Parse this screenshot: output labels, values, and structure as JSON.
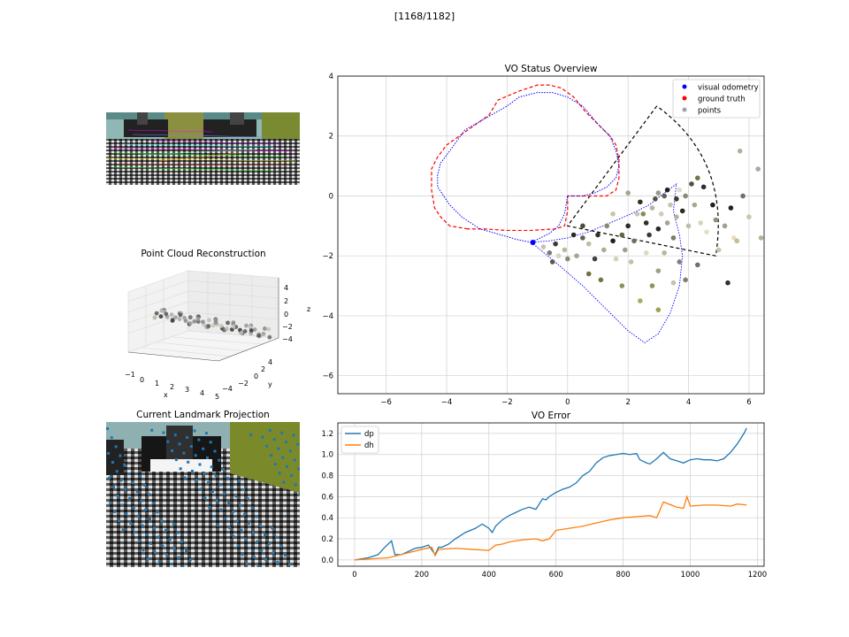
{
  "frame_counter": "[1168/1182]",
  "panels": {
    "top_image": {
      "kind": "camera frame with feature tracks"
    },
    "point_cloud": {
      "title": "Point Cloud Reconstruction",
      "xlabel": "x",
      "ylabel": "y",
      "zlabel": "z"
    },
    "landmark": {
      "title": "Current Landmark Projection"
    }
  },
  "colors": {
    "visual_odometry": "#0000ff",
    "ground_truth": "#ff0000",
    "points": "#a0a0a0",
    "dp": "#1f77b4",
    "dh": "#ff7f0e",
    "fov": "#000000",
    "grid": "#cfcfcf"
  },
  "chart_data": [
    {
      "type": "scatter",
      "title": "VO Status Overview",
      "xlim": [
        -7.6,
        6.5
      ],
      "ylim": [
        -6.6,
        4.0
      ],
      "xticks": [
        -6,
        -4,
        -2,
        0,
        2,
        4,
        6
      ],
      "yticks": [
        -6,
        -4,
        -2,
        0,
        2,
        4
      ],
      "grid": true,
      "legend_position": "top-right",
      "legend": [
        {
          "label": "visual odometry",
          "color": "#0000ff"
        },
        {
          "label": "ground truth",
          "color": "#ff0000"
        },
        {
          "label": "points",
          "color": "#a0a0a0"
        }
      ],
      "ground_truth_path": [
        [
          -3.3,
          -1.1
        ],
        [
          -3.9,
          -1.0
        ],
        [
          -4.2,
          -0.7
        ],
        [
          -4.4,
          -0.4
        ],
        [
          -4.5,
          0.2
        ],
        [
          -4.5,
          0.9
        ],
        [
          -4.3,
          1.3
        ],
        [
          -4.0,
          1.7
        ],
        [
          -3.3,
          2.2
        ],
        [
          -2.6,
          2.7
        ],
        [
          -2.3,
          3.2
        ],
        [
          -1.6,
          3.5
        ],
        [
          -1.0,
          3.7
        ],
        [
          -0.6,
          3.7
        ],
        [
          -0.2,
          3.6
        ],
        [
          0.2,
          3.3
        ],
        [
          0.6,
          2.8
        ],
        [
          1.1,
          2.3
        ],
        [
          1.4,
          2.0
        ],
        [
          1.6,
          1.7
        ],
        [
          1.7,
          1.2
        ],
        [
          1.7,
          0.6
        ],
        [
          1.6,
          0.2
        ],
        [
          1.3,
          0.0
        ],
        [
          0.9,
          0.0
        ],
        [
          0.5,
          0.0
        ],
        [
          0.0,
          0.0
        ],
        [
          0.0,
          -0.5
        ],
        [
          -0.1,
          -1.0
        ],
        [
          -0.4,
          -1.1
        ],
        [
          -1.2,
          -1.15
        ],
        [
          -2.0,
          -1.15
        ],
        [
          -2.8,
          -1.1
        ],
        [
          -3.3,
          -1.1
        ]
      ],
      "visual_odometry_path": [
        [
          -1.2,
          -1.55
        ],
        [
          -1.7,
          -1.45
        ],
        [
          -2.2,
          -1.3
        ],
        [
          -2.9,
          -1.1
        ],
        [
          -3.5,
          -0.7
        ],
        [
          -3.9,
          -0.3
        ],
        [
          -4.1,
          0.0
        ],
        [
          -4.3,
          0.3
        ],
        [
          -4.3,
          0.7
        ],
        [
          -4.2,
          1.1
        ],
        [
          -3.9,
          1.5
        ],
        [
          -3.4,
          2.2
        ],
        [
          -2.7,
          2.6
        ],
        [
          -2.0,
          3.0
        ],
        [
          -1.6,
          3.3
        ],
        [
          -1.0,
          3.45
        ],
        [
          -0.5,
          3.45
        ],
        [
          0.0,
          3.3
        ],
        [
          0.5,
          3.0
        ],
        [
          1.0,
          2.4
        ],
        [
          1.4,
          2.0
        ],
        [
          1.6,
          1.5
        ],
        [
          1.7,
          1.0
        ],
        [
          1.6,
          0.6
        ],
        [
          1.3,
          0.3
        ],
        [
          0.9,
          0.1
        ],
        [
          0.5,
          0.0
        ],
        [
          0.0,
          0.0
        ],
        [
          -0.1,
          -0.6
        ],
        [
          -0.3,
          -1.0
        ],
        [
          -0.6,
          -1.25
        ],
        [
          -1.2,
          -1.55
        ]
      ],
      "vo_coverage_boundary": [
        [
          -1.2,
          -1.55
        ],
        [
          -0.3,
          -2.3
        ],
        [
          0.5,
          -3.0
        ],
        [
          1.3,
          -3.8
        ],
        [
          2.0,
          -4.5
        ],
        [
          2.55,
          -4.9
        ],
        [
          3.0,
          -4.6
        ],
        [
          3.4,
          -3.9
        ],
        [
          3.7,
          -3.0
        ],
        [
          3.8,
          -2.0
        ],
        [
          3.7,
          -1.3
        ],
        [
          3.6,
          -0.9
        ],
        [
          3.5,
          -0.5
        ],
        [
          3.6,
          0.4
        ],
        [
          3.2,
          0.1
        ],
        [
          2.7,
          -0.3
        ],
        [
          2.1,
          -0.6
        ],
        [
          1.4,
          -0.9
        ],
        [
          0.7,
          -1.2
        ],
        [
          0.0,
          -1.4
        ],
        [
          -0.6,
          -1.5
        ],
        [
          -1.2,
          -1.55
        ]
      ],
      "fov_cone": {
        "apex": [
          0.0,
          -1.0
        ],
        "left": [
          2.95,
          3.0
        ],
        "right": [
          4.9,
          -2.0
        ]
      },
      "current_position": [
        -1.15,
        -1.55
      ],
      "points": [
        [
          -0.8,
          -1.7,
          "#c8c2b0"
        ],
        [
          -0.6,
          -1.9,
          "#7a7a6a"
        ],
        [
          -0.4,
          -1.6,
          "#3a3a3a"
        ],
        [
          -0.3,
          -2.0,
          "#d8d4c8"
        ],
        [
          -0.1,
          -1.8,
          "#bdb79a"
        ],
        [
          -0.5,
          -2.2,
          "#5a5a50"
        ],
        [
          0.0,
          -2.1,
          "#8a8a7a"
        ],
        [
          0.2,
          -1.3,
          "#2a2a2a"
        ],
        [
          0.3,
          -2.0,
          "#a8a68a"
        ],
        [
          0.5,
          -1.4,
          "#606050"
        ],
        [
          0.7,
          -1.6,
          "#c0bba0"
        ],
        [
          0.9,
          -2.1,
          "#404040"
        ],
        [
          1.0,
          -1.3,
          "#303030"
        ],
        [
          1.2,
          -1.8,
          "#b0aa90"
        ],
        [
          1.3,
          -1.0,
          "#888878"
        ],
        [
          1.5,
          -1.5,
          "#202020"
        ],
        [
          1.6,
          -2.1,
          "#d8d0b8"
        ],
        [
          1.8,
          -1.3,
          "#5a6a3a"
        ],
        [
          1.9,
          -1.8,
          "#a0a090"
        ],
        [
          2.0,
          -1.0,
          "#2a2a2a"
        ],
        [
          2.1,
          -2.2,
          "#c8c0a8"
        ],
        [
          2.2,
          -1.5,
          "#707060"
        ],
        [
          2.3,
          -0.6,
          "#c8c4b0"
        ],
        [
          2.4,
          -0.2,
          "#303028"
        ],
        [
          2.5,
          -0.6,
          "#8a8a5a"
        ],
        [
          2.6,
          -1.9,
          "#e0d8c0"
        ],
        [
          2.7,
          -1.3,
          "#3a3a3a"
        ],
        [
          2.8,
          -0.4,
          "#b8b4a0"
        ],
        [
          2.9,
          -0.1,
          "#505048"
        ],
        [
          3.0,
          0.1,
          "#9a9a88"
        ],
        [
          3.0,
          -1.1,
          "#2a2a2a"
        ],
        [
          3.1,
          -0.6,
          "#d0ccb8"
        ],
        [
          3.2,
          0.0,
          "#606058"
        ],
        [
          3.3,
          -0.9,
          "#a8a490"
        ],
        [
          3.3,
          0.2,
          "#202020"
        ],
        [
          3.4,
          -0.3,
          "#c8c4b0"
        ],
        [
          3.5,
          -1.4,
          "#7a7a6a"
        ],
        [
          3.6,
          -0.1,
          "#3a3a32"
        ],
        [
          3.6,
          -0.7,
          "#b8b29a"
        ],
        [
          3.7,
          0.2,
          "#e0dcc8"
        ],
        [
          3.8,
          -0.5,
          "#2a2a2a"
        ],
        [
          3.9,
          0.0,
          "#8a8a78"
        ],
        [
          4.0,
          -1.0,
          "#c0bca8"
        ],
        [
          4.1,
          0.4,
          "#505048"
        ],
        [
          4.2,
          -0.3,
          "#aaa690"
        ],
        [
          4.3,
          0.6,
          "#6a7a40"
        ],
        [
          4.4,
          -0.9,
          "#d8d4c0"
        ],
        [
          4.5,
          0.3,
          "#303030"
        ],
        [
          4.6,
          -1.2,
          "#e4e0c8"
        ],
        [
          4.8,
          -0.3,
          "#202020"
        ],
        [
          5.0,
          -1.8,
          "#c8c4b0"
        ],
        [
          5.2,
          -1.0,
          "#a0a090"
        ],
        [
          5.4,
          -0.4,
          "#202020"
        ],
        [
          5.5,
          -1.4,
          "#e8dcc0"
        ],
        [
          5.7,
          1.5,
          "#b0b0a0"
        ],
        [
          5.8,
          0.0,
          "#707068"
        ],
        [
          6.0,
          -0.7,
          "#c8c4b0"
        ],
        [
          6.3,
          0.9,
          "#a8a8a0"
        ],
        [
          6.4,
          -1.4,
          "#b8b290"
        ],
        [
          3.0,
          -2.5,
          "#a0a080"
        ],
        [
          2.8,
          -3.0,
          "#909060"
        ],
        [
          3.5,
          -2.9,
          "#c8c0a8"
        ],
        [
          3.9,
          -2.8,
          "#808070"
        ],
        [
          5.3,
          -2.9,
          "#303030"
        ],
        [
          2.4,
          -3.5,
          "#b0a860"
        ],
        [
          3.0,
          -3.8,
          "#a0a050"
        ],
        [
          1.8,
          -3.0,
          "#909060"
        ],
        [
          1.1,
          -2.8,
          "#6a7a40"
        ],
        [
          0.7,
          -2.6,
          "#707040"
        ],
        [
          1.5,
          -0.6,
          "#c8c4b0"
        ],
        [
          2.0,
          0.1,
          "#a8a490"
        ],
        [
          0.5,
          -1.0,
          "#4a4a40"
        ],
        [
          4.9,
          -0.8,
          "#909080"
        ],
        [
          5.6,
          -1.5,
          "#c8bc90"
        ],
        [
          3.7,
          -2.2,
          "#808078"
        ],
        [
          4.3,
          -2.3,
          "#707068"
        ],
        [
          3.2,
          -1.9,
          "#b8b4a0"
        ],
        [
          2.6,
          -0.9,
          "#303028"
        ]
      ]
    },
    {
      "type": "line",
      "title": "VO Error",
      "xlim": [
        -50,
        1220
      ],
      "ylim": [
        -0.06,
        1.3
      ],
      "xticks": [
        0,
        200,
        400,
        600,
        800,
        1000,
        1200
      ],
      "yticks": [
        0.0,
        0.2,
        0.4,
        0.6,
        0.8,
        1.0,
        1.2
      ],
      "grid": true,
      "legend_position": "top-left",
      "series": [
        {
          "name": "dp",
          "color": "#1f77b4",
          "x": [
            0,
            40,
            70,
            90,
            110,
            120,
            140,
            160,
            180,
            200,
            220,
            240,
            250,
            260,
            280,
            300,
            330,
            360,
            380,
            400,
            410,
            420,
            440,
            460,
            480,
            500,
            520,
            540,
            560,
            570,
            580,
            600,
            620,
            640,
            660,
            680,
            700,
            720,
            740,
            760,
            780,
            800,
            820,
            840,
            850,
            870,
            880,
            900,
            920,
            940,
            960,
            980,
            1000,
            1020,
            1040,
            1060,
            1080,
            1100,
            1120,
            1140,
            1160,
            1168
          ],
          "values": [
            0.0,
            0.02,
            0.05,
            0.12,
            0.18,
            0.05,
            0.05,
            0.08,
            0.11,
            0.12,
            0.14,
            0.05,
            0.12,
            0.12,
            0.15,
            0.2,
            0.26,
            0.3,
            0.34,
            0.3,
            0.26,
            0.32,
            0.38,
            0.42,
            0.45,
            0.48,
            0.5,
            0.48,
            0.58,
            0.57,
            0.6,
            0.64,
            0.67,
            0.69,
            0.73,
            0.8,
            0.84,
            0.92,
            0.97,
            0.99,
            1.0,
            1.01,
            1.0,
            1.01,
            0.95,
            0.92,
            0.91,
            0.96,
            1.02,
            0.96,
            0.94,
            0.92,
            0.95,
            0.96,
            0.95,
            0.95,
            0.94,
            0.96,
            1.02,
            1.1,
            1.2,
            1.25
          ]
        },
        {
          "name": "dh",
          "color": "#ff7f0e",
          "x": [
            0,
            50,
            100,
            150,
            200,
            230,
            240,
            250,
            300,
            350,
            400,
            420,
            440,
            460,
            480,
            500,
            540,
            560,
            580,
            600,
            640,
            680,
            720,
            760,
            800,
            840,
            880,
            900,
            920,
            960,
            980,
            990,
            1000,
            1040,
            1080,
            1120,
            1140,
            1168
          ],
          "values": [
            0.0,
            0.01,
            0.02,
            0.06,
            0.1,
            0.12,
            0.04,
            0.1,
            0.11,
            0.1,
            0.09,
            0.14,
            0.15,
            0.17,
            0.18,
            0.19,
            0.2,
            0.18,
            0.2,
            0.28,
            0.3,
            0.32,
            0.35,
            0.38,
            0.4,
            0.41,
            0.42,
            0.4,
            0.55,
            0.5,
            0.49,
            0.6,
            0.51,
            0.52,
            0.52,
            0.51,
            0.53,
            0.52
          ]
        }
      ]
    }
  ]
}
